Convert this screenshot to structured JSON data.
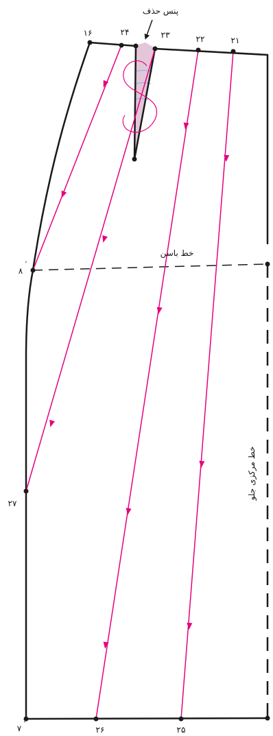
{
  "labels": {
    "dart_title": "پنس حذف",
    "hip_line": "خط باسن",
    "center_front_line": "خط مرکزی جلو"
  },
  "points": {
    "p16": "۱۶",
    "p24": "۲۴",
    "p23": "۲۳",
    "p22": "۲۲",
    "p21": "۲۱",
    "p8": "۸",
    "p27": "۲۷",
    "p7": "۷",
    "p26": "۲۶",
    "p25": "۲۵"
  },
  "colors": {
    "outline": "#1a1a1a",
    "guide": "#e6007e",
    "dart_fill": "#e3c6d8",
    "dart_marks": "#6fb8e8"
  }
}
